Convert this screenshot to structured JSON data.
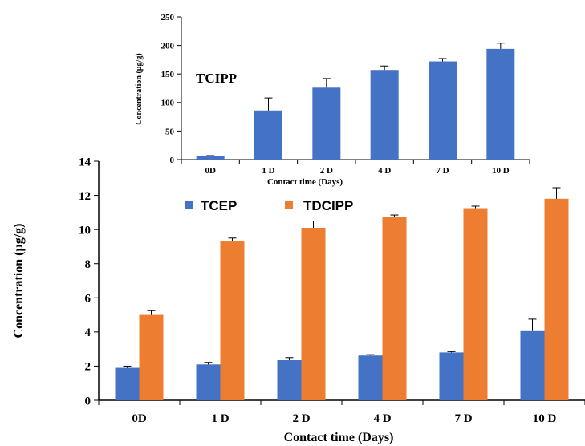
{
  "chart_data": [
    {
      "type": "bar",
      "annotation": "TCIPP",
      "xlabel": "Contact time (Days)",
      "ylabel": "Concentration (µg/g)",
      "categories": [
        "0D",
        "1 D",
        "2 D",
        "4 D",
        "7 D",
        "10 D"
      ],
      "ylim": [
        0,
        250
      ],
      "yticks": [
        "0",
        "50",
        "100",
        "150",
        "200",
        "250"
      ],
      "grid": false,
      "series": [
        {
          "values": [
            6,
            86,
            126,
            157,
            172,
            194
          ],
          "errors": [
            1,
            22,
            16,
            7,
            5,
            10
          ],
          "color": "#4472C4"
        }
      ]
    },
    {
      "type": "bar",
      "xlabel": "Contact time (Days)",
      "ylabel": "Concentration (µg/g)",
      "categories": [
        "0D",
        "1 D",
        "2 D",
        "4 D",
        "7 D",
        "10 D"
      ],
      "ylim": [
        0,
        14
      ],
      "yticks": [
        "0",
        "2",
        "4",
        "6",
        "8",
        "10",
        "12",
        "14"
      ],
      "grid": false,
      "legend_position": "top-left",
      "series": [
        {
          "name": "TCEP",
          "values": [
            1.9,
            2.1,
            2.35,
            2.62,
            2.8,
            4.05
          ],
          "errors": [
            0.1,
            0.12,
            0.15,
            0.05,
            0.05,
            0.7
          ],
          "color": "#4472C4"
        },
        {
          "name": "TDCIPP",
          "values": [
            5.0,
            9.3,
            10.1,
            10.75,
            11.25,
            11.8
          ],
          "errors": [
            0.25,
            0.2,
            0.4,
            0.1,
            0.12,
            0.65
          ],
          "color": "#ED7D31"
        }
      ]
    }
  ]
}
